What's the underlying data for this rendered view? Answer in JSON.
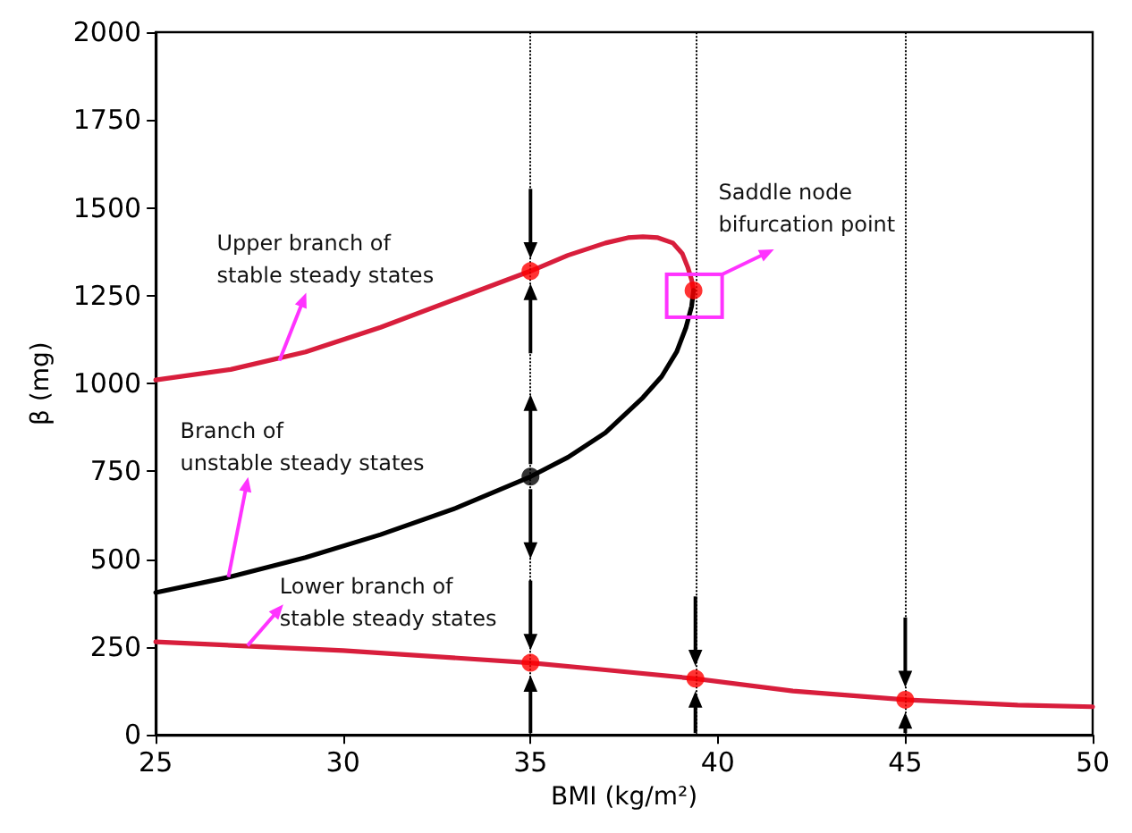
{
  "chart_data": {
    "type": "line",
    "xlabel": "BMI (kg/m²)",
    "ylabel": "β (mg)",
    "xlim": [
      25,
      50
    ],
    "xticks": [
      25,
      30,
      35,
      40,
      45,
      50
    ],
    "ylim": [
      0,
      2000
    ],
    "yticks": [
      0,
      250,
      500,
      750,
      1000,
      1250,
      1500,
      1750,
      2000
    ],
    "grid": false,
    "marker": "none",
    "line_style": "solid",
    "series": [
      {
        "color": "#d81e3c",
        "x": [
          25,
          27,
          29,
          31,
          33,
          35,
          36,
          37,
          37.6,
          38,
          38.4,
          38.8,
          39.05,
          39.2,
          39.3,
          39.35
        ],
        "values": [
          1010,
          1040,
          1090,
          1160,
          1240,
          1320,
          1365,
          1400,
          1415,
          1418,
          1415,
          1400,
          1370,
          1330,
          1295,
          1265
        ]
      },
      {
        "color": "#000000",
        "x": [
          25,
          27,
          29,
          31,
          33,
          35,
          36,
          37,
          38,
          38.5,
          38.9,
          39.15,
          39.3,
          39.35
        ],
        "values": [
          405,
          450,
          505,
          570,
          645,
          735,
          790,
          860,
          960,
          1020,
          1090,
          1160,
          1220,
          1265
        ]
      },
      {
        "color": "#d81e3c",
        "x": [
          25,
          30,
          35,
          37,
          39.4,
          42,
          45,
          48,
          50
        ],
        "values": [
          265,
          240,
          205,
          185,
          160,
          125,
          100,
          85,
          80
        ]
      },
      {
        "type": "scatter",
        "marker": "circle",
        "color": "#ff0000",
        "x": [
          35,
          35,
          39.4,
          45
        ],
        "values": [
          1320,
          205,
          160,
          100
        ]
      },
      {
        "type": "scatter",
        "marker": "circle",
        "color": "#000000",
        "x": [
          35
        ],
        "values": [
          735
        ]
      },
      {
        "type": "scatter",
        "marker": "circle",
        "color": "#ff0000",
        "x": [
          39.35
        ],
        "values": [
          1265
        ]
      }
    ],
    "ref_lines": [
      {
        "axis": "x",
        "value": 35,
        "color": "#000000",
        "line_style": "dotted"
      },
      {
        "axis": "x",
        "value": 39.4,
        "color": "#000000",
        "line_style": "dotted"
      },
      {
        "axis": "x",
        "value": 45,
        "color": "#000000",
        "line_style": "dotted"
      }
    ],
    "annotations": [
      {
        "text": "Upper branch of\nstable steady states",
        "x": 28.3,
        "y": 1065
      },
      {
        "text": "Branch of\nunstable steady states",
        "x": 26.94,
        "y": 449
      },
      {
        "text": "Lower branch of\nstable steady states",
        "x": 27.45,
        "y": 254
      },
      {
        "text": "Saddle node\nbifurcation point",
        "x": 39.35,
        "y": 1265
      }
    ]
  }
}
